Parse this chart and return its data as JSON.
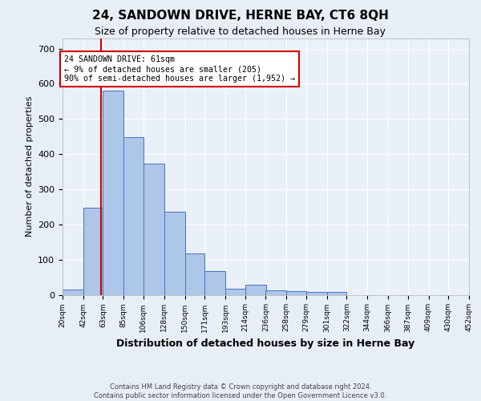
{
  "title": "24, SANDOWN DRIVE, HERNE BAY, CT6 8QH",
  "subtitle": "Size of property relative to detached houses in Herne Bay",
  "xlabel": "Distribution of detached houses by size in Herne Bay",
  "ylabel": "Number of detached properties",
  "bar_values": [
    15,
    248,
    580,
    448,
    372,
    235,
    118,
    67,
    17,
    28,
    12,
    10,
    7,
    8,
    0,
    0,
    0,
    0,
    0,
    0
  ],
  "bin_labels": [
    "20sqm",
    "42sqm",
    "63sqm",
    "85sqm",
    "106sqm",
    "128sqm",
    "150sqm",
    "171sqm",
    "193sqm",
    "214sqm",
    "236sqm",
    "258sqm",
    "279sqm",
    "301sqm",
    "322sqm",
    "344sqm",
    "366sqm",
    "387sqm",
    "409sqm",
    "430sqm",
    "452sqm"
  ],
  "bin_edges": [
    20,
    42,
    63,
    85,
    106,
    128,
    150,
    171,
    193,
    214,
    236,
    258,
    279,
    301,
    322,
    344,
    366,
    387,
    409,
    430,
    452
  ],
  "bar_color": "#aec6e8",
  "bar_edge_color": "#4472c4",
  "property_line_x": 61,
  "property_line_color": "#cc0000",
  "annotation_text": "24 SANDOWN DRIVE: 61sqm\n← 9% of detached houses are smaller (205)\n90% of semi-detached houses are larger (1,952) →",
  "annotation_box_color": "#ffffff",
  "annotation_box_edge": "#cc0000",
  "ylim": [
    0,
    730
  ],
  "yticks": [
    0,
    100,
    200,
    300,
    400,
    500,
    600,
    700
  ],
  "footer": "Contains HM Land Registry data © Crown copyright and database right 2024.\nContains public sector information licensed under the Open Government Licence v3.0.",
  "bg_color": "#e8eef5",
  "plot_bg_color": "#eaf0f8",
  "title_fontsize": 11,
  "subtitle_fontsize": 9,
  "ylabel_fontsize": 8,
  "xlabel_fontsize": 9
}
